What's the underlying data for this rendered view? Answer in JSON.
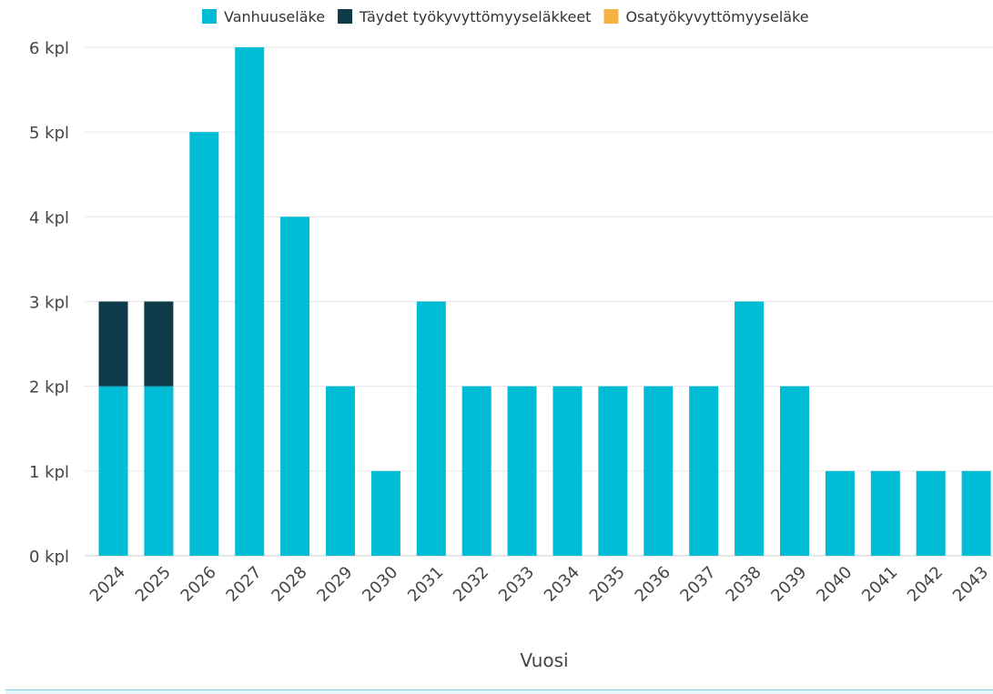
{
  "chart_data": {
    "type": "bar",
    "stacked": true,
    "categories": [
      "2024",
      "2025",
      "2026",
      "2027",
      "2028",
      "2029",
      "2030",
      "2031",
      "2032",
      "2033",
      "2034",
      "2035",
      "2036",
      "2037",
      "2038",
      "2039",
      "2040",
      "2041",
      "2042",
      "2043"
    ],
    "series": [
      {
        "name": "Vanhuuseläke",
        "color": "#00bcd4",
        "values": [
          2,
          2,
          5,
          6,
          4,
          2,
          1,
          3,
          2,
          2,
          2,
          2,
          2,
          2,
          3,
          2,
          1,
          1,
          1,
          1
        ]
      },
      {
        "name": "Täydet työkyvyttömyyseläkkeet",
        "color": "#0e3a4a",
        "values": [
          1,
          1,
          0,
          0,
          0,
          0,
          0,
          0,
          0,
          0,
          0,
          0,
          0,
          0,
          0,
          0,
          0,
          0,
          0,
          0
        ]
      },
      {
        "name": "Osatyökyvyttömyyseläke",
        "color": "#f6b244",
        "values": [
          0,
          0,
          0,
          0,
          0,
          0,
          0,
          0,
          0,
          0,
          0,
          0,
          0,
          0,
          0,
          0,
          0,
          0,
          0,
          0
        ]
      }
    ],
    "y_ticks": [
      "0 kpl",
      "1 kpl",
      "2 kpl",
      "3 kpl",
      "4 kpl",
      "5 kpl",
      "6 kpl"
    ],
    "ylim": [
      0,
      6
    ],
    "xlabel": "Vuosi",
    "ylabel": "",
    "title": "",
    "grid": true,
    "legend_position": "top-right"
  }
}
